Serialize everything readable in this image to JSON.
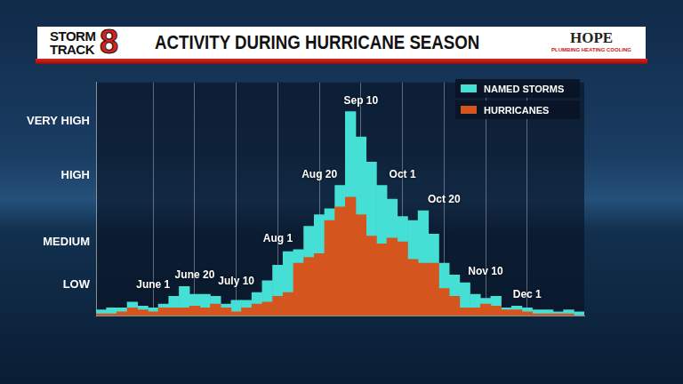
{
  "header": {
    "logo": {
      "lines": [
        "STORM",
        "TRACK"
      ],
      "mark": "8"
    },
    "sponsor": {
      "name": "HOPE",
      "tagline": "PLUMBING HEATING COOLING"
    }
  },
  "chart_data": {
    "type": "bar",
    "title": "ACTIVITY DURING HURRICANE SEASON",
    "categories": [
      null,
      null,
      null,
      null,
      null,
      "June 1",
      null,
      null,
      null,
      "June 20",
      null,
      null,
      null,
      "July 10",
      null,
      null,
      null,
      "Aug 1",
      null,
      null,
      null,
      "Aug 20",
      null,
      null,
      null,
      "Sep 10",
      null,
      null,
      null,
      "Oct 1",
      null,
      null,
      null,
      "Oct 20",
      null,
      null,
      null,
      "Nov 10",
      null,
      null,
      null,
      "Dec 1",
      null,
      null,
      null,
      null,
      null
    ],
    "series": [
      {
        "name": "NAMED STORMS",
        "color": "#45dfd6",
        "values": [
          3,
          4,
          4,
          7,
          5,
          4,
          6,
          10,
          15,
          11,
          11,
          10,
          6,
          8,
          8,
          12,
          18,
          26,
          33,
          34,
          46,
          52,
          55,
          67,
          105,
          92,
          79,
          67,
          60,
          51,
          49,
          54,
          42,
          27,
          21,
          17,
          11,
          9,
          10,
          4,
          5,
          4,
          3,
          3,
          2,
          3,
          2
        ]
      },
      {
        "name": "HURRICANES",
        "color": "#d4561e",
        "values": [
          1,
          1,
          2,
          4,
          3,
          2,
          4,
          4,
          4,
          5,
          4,
          6,
          4,
          2,
          4,
          6,
          7,
          10,
          12,
          27,
          30,
          32,
          49,
          56,
          61,
          52,
          41,
          37,
          40,
          38,
          29,
          27,
          27,
          14,
          10,
          4,
          4,
          6,
          5,
          3,
          3,
          2,
          1,
          1,
          1,
          1,
          0
        ]
      }
    ],
    "ylim": [
      0,
      120
    ],
    "yticks": [
      {
        "value": 16,
        "label": "LOW"
      },
      {
        "value": 38,
        "label": "MEDIUM"
      },
      {
        "value": 72,
        "label": "HIGH"
      },
      {
        "value": 100,
        "label": "VERY HIGH"
      }
    ],
    "stacked": false,
    "grid": "x",
    "legend": "top-right",
    "tick_labels": "y"
  }
}
